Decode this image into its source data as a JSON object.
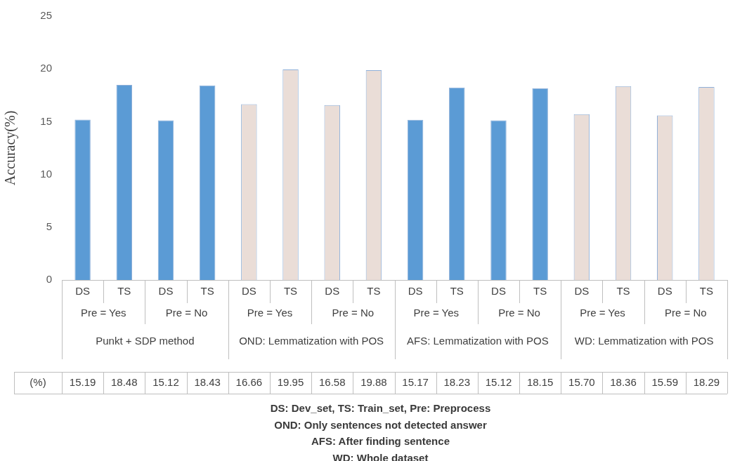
{
  "chart_data": {
    "type": "bar",
    "ylabel": "Accuracy(%)",
    "categories": [
      "DS",
      "TS",
      "DS",
      "TS",
      "DS",
      "TS",
      "DS",
      "TS",
      "DS",
      "TS",
      "DS",
      "TS",
      "DS",
      "TS",
      "DS",
      "TS"
    ],
    "values": [
      15.19,
      18.48,
      15.12,
      18.43,
      16.66,
      19.95,
      16.58,
      19.88,
      15.17,
      18.23,
      15.12,
      18.15,
      15.7,
      18.36,
      15.59,
      18.29
    ],
    "value_labels": [
      "15.19",
      "18.48",
      "15.12",
      "18.43",
      "16.66",
      "19.95",
      "16.58",
      "19.88",
      "15.17",
      "18.23",
      "15.12",
      "18.15",
      "15.70",
      "18.36",
      "15.59",
      "18.29"
    ],
    "colors": [
      "#5b9bd5",
      "#5b9bd5",
      "#5b9bd5",
      "#5b9bd5",
      "#eaddd7",
      "#eaddd7",
      "#eaddd7",
      "#eaddd7",
      "#5b9bd5",
      "#5b9bd5",
      "#5b9bd5",
      "#5b9bd5",
      "#eaddd7",
      "#eaddd7",
      "#eaddd7",
      "#eaddd7"
    ],
    "ylim": [
      0,
      25
    ],
    "yticks": [
      0,
      5,
      10,
      15,
      20,
      25
    ],
    "grid": false,
    "legend": false,
    "annotations": [
      "Pre = Yes",
      "Pre = No",
      "Pre = Yes",
      "Pre = No",
      "Pre = Yes",
      "Pre = No",
      "Pre = Yes",
      "Pre = No",
      "Punkt + SDP method",
      "OND: Lemmatization with POS",
      "AFS: Lemmatization with POS",
      "WD: Lemmatization with POS",
      "(%)",
      "DS: Dev_set, TS: Train_set, Pre: Preprocess",
      "OND: Only sentences not detected answer",
      "AFS: After finding sentence",
      "WD: Whole dataset"
    ]
  }
}
